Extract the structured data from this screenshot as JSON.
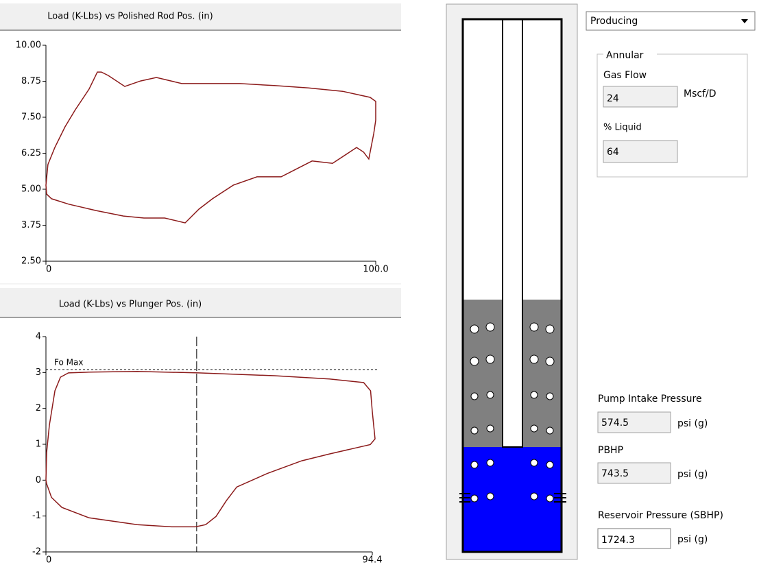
{
  "chart_data": [
    {
      "type": "line",
      "title": "Load (K-Lbs) vs Polished Rod Pos. (in)",
      "xlim": [
        0,
        100
      ],
      "xticks": [
        0,
        {
          "value": 100,
          "label": "100.0"
        }
      ],
      "ylim": [
        2.5,
        10
      ],
      "yticks": [
        {
          "value": 2.5,
          "label": "2.50"
        },
        {
          "value": 3.75,
          "label": "3.75"
        },
        {
          "value": 5,
          "label": "5.00"
        },
        {
          "value": 6.25,
          "label": "6.25"
        },
        {
          "value": 7.5,
          "label": "7.50"
        },
        {
          "value": 8.75,
          "label": "8.75"
        },
        {
          "value": 10,
          "label": "10.00"
        }
      ],
      "series": [
        {
          "color": "#8b1a1a",
          "x": [
            0,
            0.6,
            2.7,
            5.8,
            8.9,
            13.1,
            15.6,
            16.8,
            18.9,
            23.9,
            28.7,
            33.5,
            41.2,
            48.4,
            58.8,
            69.2,
            79.6,
            90,
            98.3,
            100,
            100,
            99.4,
            97.9,
            96.3,
            94.2,
            92.1,
            86.9,
            80.7,
            71.3,
            64,
            56.8,
            50.5,
            46.4,
            42.2,
            36,
            29.7,
            23.5,
            15.2,
            6.9,
            1.7,
            0.2
          ],
          "values": [
            5.14,
            5.86,
            6.45,
            7.17,
            7.76,
            8.48,
            9.07,
            9.07,
            8.95,
            8.57,
            8.76,
            8.88,
            8.67,
            8.67,
            8.67,
            8.6,
            8.52,
            8.4,
            8.19,
            8.05,
            7.4,
            6.93,
            6.05,
            6.29,
            6.45,
            6.29,
            5.9,
            5.98,
            5.43,
            5.43,
            5.14,
            4.67,
            4.31,
            3.83,
            4.0,
            4.0,
            4.07,
            4.26,
            4.48,
            4.67,
            4.83
          ]
        }
      ]
    },
    {
      "type": "line",
      "title": "Load (K-Lbs) vs Plunger Pos. (in)",
      "xlim": [
        0,
        94.4
      ],
      "xticks": [
        0,
        94.4
      ],
      "ylim": [
        -2,
        4
      ],
      "yticks": [
        -2,
        -1,
        0,
        1,
        2,
        3,
        4
      ],
      "reference_y": 3.08,
      "reference_label": "Fo Max",
      "marker_x": 43.6,
      "series": [
        {
          "color": "#8b1a1a",
          "x": [
            0,
            0.2,
            1,
            2.6,
            4.2,
            6.5,
            12.5,
            26.4,
            44.2,
            66.1,
            82,
            91.9,
            93.9,
            94.4,
            95.2,
            93.8,
            87.9,
            82,
            74,
            64.1,
            55.2,
            52.2,
            49.2,
            46.2,
            43.3,
            36.3,
            26.4,
            12.5,
            4.6,
            1.6,
            0.2
          ],
          "values": [
            0,
            0.77,
            1.53,
            2.49,
            2.87,
            2.99,
            3.01,
            3.03,
            2.99,
            2.91,
            2.82,
            2.72,
            2.49,
            1.91,
            1.15,
            0.99,
            0.86,
            0.73,
            0.54,
            0.19,
            -0.19,
            -0.57,
            -1.01,
            -1.24,
            -1.3,
            -1.3,
            -1.24,
            -1.05,
            -0.76,
            -0.48,
            -0.1
          ]
        }
      ]
    }
  ],
  "panel": {
    "mode": "Producing",
    "group": "Annular",
    "gas_flow_label": "Gas Flow",
    "gas_flow": "24",
    "gas_flow_unit": "Mscf/D",
    "liquid_label": "% Liquid",
    "liquid": "64",
    "pip_label": "Pump Intake Pressure",
    "pip": "574.5",
    "pip_unit": "psi (g)",
    "pbhp_label": "PBHP",
    "pbhp": "743.5",
    "pbhp_unit": "psi (g)",
    "sbhp_label": "Reservoir Pressure (SBHP)",
    "sbhp": "1724.3",
    "sbhp_unit": "psi (g)"
  }
}
